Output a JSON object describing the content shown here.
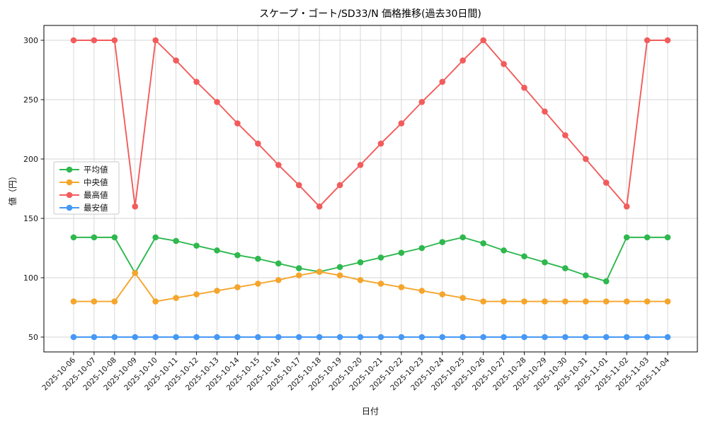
{
  "chart_data": {
    "type": "line",
    "title": "スケープ・ゴート/SD33/N 価格推移(過去30日間)",
    "xlabel": "日付",
    "ylabel": "値（円）",
    "grid": true,
    "legend_position": "center-left",
    "yticks": [
      50,
      100,
      150,
      200,
      250,
      300
    ],
    "ylim": [
      37.5,
      312.5
    ],
    "x": [
      "2025-10-06",
      "2025-10-07",
      "2025-10-08",
      "2025-10-09",
      "2025-10-10",
      "2025-10-11",
      "2025-10-12",
      "2025-10-13",
      "2025-10-14",
      "2025-10-15",
      "2025-10-16",
      "2025-10-17",
      "2025-10-18",
      "2025-10-19",
      "2025-10-20",
      "2025-10-21",
      "2025-10-22",
      "2025-10-23",
      "2025-10-24",
      "2025-10-25",
      "2025-10-26",
      "2025-10-27",
      "2025-10-28",
      "2025-10-29",
      "2025-10-30",
      "2025-10-31",
      "2025-11-01",
      "2025-11-02",
      "2025-11-03",
      "2025-11-04"
    ],
    "series": [
      {
        "name": "平均値",
        "key": "average",
        "color": "#2eb84e",
        "values": [
          134,
          134,
          134,
          104,
          134,
          131,
          127,
          123,
          119,
          116,
          112,
          108,
          105,
          109,
          113,
          117,
          121,
          125,
          130,
          134,
          129,
          123,
          118,
          113,
          108,
          102,
          97,
          134,
          134,
          134
        ]
      },
      {
        "name": "中央値",
        "key": "median",
        "color": "#f5a52c",
        "values": [
          80,
          80,
          80,
          104,
          80,
          83,
          86,
          89,
          92,
          95,
          98,
          102,
          105,
          102,
          98,
          95,
          92,
          89,
          86,
          83,
          80,
          80,
          80,
          80,
          80,
          80,
          80,
          80,
          80,
          80
        ]
      },
      {
        "name": "最高値",
        "key": "highest",
        "color": "#f25c5c",
        "values": [
          300,
          300,
          300,
          160,
          300,
          283,
          265,
          248,
          230,
          213,
          195,
          178,
          160,
          178,
          195,
          213,
          230,
          248,
          265,
          283,
          300,
          280,
          260,
          240,
          220,
          200,
          180,
          160,
          300,
          300
        ]
      },
      {
        "name": "最安値",
        "key": "lowest",
        "color": "#4598f5",
        "values": [
          50,
          50,
          50,
          50,
          50,
          50,
          50,
          50,
          50,
          50,
          50,
          50,
          50,
          50,
          50,
          50,
          50,
          50,
          50,
          50,
          50,
          50,
          50,
          50,
          50,
          50,
          50,
          50,
          50,
          50
        ]
      }
    ]
  }
}
